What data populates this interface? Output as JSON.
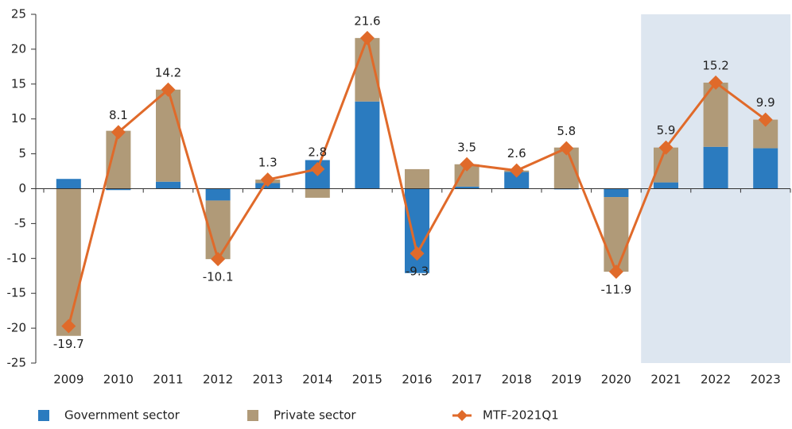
{
  "chart_data": {
    "type": "stacked_bar_line",
    "categories": [
      "2009",
      "2010",
      "2011",
      "2012",
      "2013",
      "2014",
      "2015",
      "2016",
      "2017",
      "2018",
      "2019",
      "2020",
      "2021",
      "2022",
      "2023"
    ],
    "series": [
      {
        "name": "Government sector",
        "type": "bar",
        "color": "#2b7bbf",
        "values": [
          1.4,
          -0.2,
          1.0,
          -1.7,
          0.8,
          4.1,
          12.5,
          -12.1,
          0.3,
          2.4,
          -0.1,
          -1.2,
          0.9,
          6.0,
          5.8
        ]
      },
      {
        "name": "Private sector",
        "type": "bar",
        "color": "#b09a78",
        "values": [
          -21.1,
          8.3,
          13.2,
          -8.4,
          0.5,
          -1.3,
          9.1,
          2.8,
          3.2,
          0.2,
          5.9,
          -10.7,
          5.0,
          9.2,
          4.1
        ]
      },
      {
        "name": "MTF-2021Q1",
        "type": "line",
        "color": "#e06a2a",
        "values": [
          -19.7,
          8.1,
          14.2,
          -10.1,
          1.3,
          2.8,
          21.6,
          -9.3,
          3.5,
          2.6,
          5.8,
          -11.9,
          5.9,
          15.2,
          9.9
        ]
      }
    ],
    "ylim": [
      -25,
      25
    ],
    "yticks": [
      -25,
      -20,
      -15,
      -10,
      -5,
      0,
      5,
      10,
      15,
      20,
      25
    ],
    "shade_from": "2021",
    "shade_color": "#dde6f0",
    "legend": "bottom"
  }
}
